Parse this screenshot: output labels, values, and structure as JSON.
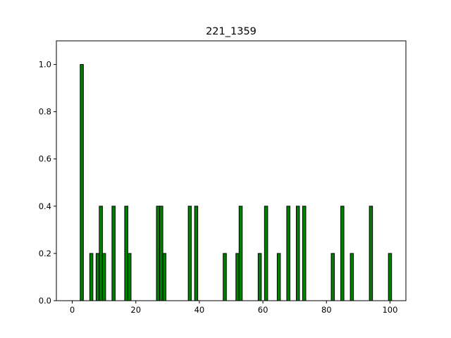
{
  "chart_data": {
    "type": "bar",
    "title": "221_1359",
    "xlabel": "",
    "ylabel": "",
    "xlim": [
      -5,
      105
    ],
    "ylim": [
      0,
      1.1
    ],
    "xticks": [
      0,
      20,
      40,
      60,
      80,
      100
    ],
    "xtick_labels": [
      "0",
      "20",
      "40",
      "60",
      "80",
      "100"
    ],
    "yticks": [
      0.0,
      0.2,
      0.4,
      0.6,
      0.8,
      1.0
    ],
    "ytick_labels": [
      "0.0",
      "0.2",
      "0.4",
      "0.6",
      "0.8",
      "1.0"
    ],
    "bar_width": 1,
    "bar_color": "#008000",
    "edge_color": "#000000",
    "grid": false,
    "x": [
      3,
      6,
      8,
      9,
      10,
      13,
      17,
      18,
      27,
      28,
      29,
      37,
      39,
      48,
      52,
      53,
      59,
      61,
      65,
      68,
      71,
      73,
      82,
      85,
      88,
      94,
      100
    ],
    "values": [
      1.0,
      0.2,
      0.2,
      0.4,
      0.2,
      0.4,
      0.4,
      0.2,
      0.4,
      0.4,
      0.2,
      0.4,
      0.4,
      0.2,
      0.2,
      0.4,
      0.2,
      0.4,
      0.2,
      0.4,
      0.4,
      0.4,
      0.2,
      0.4,
      0.2,
      0.4,
      0.2
    ]
  }
}
